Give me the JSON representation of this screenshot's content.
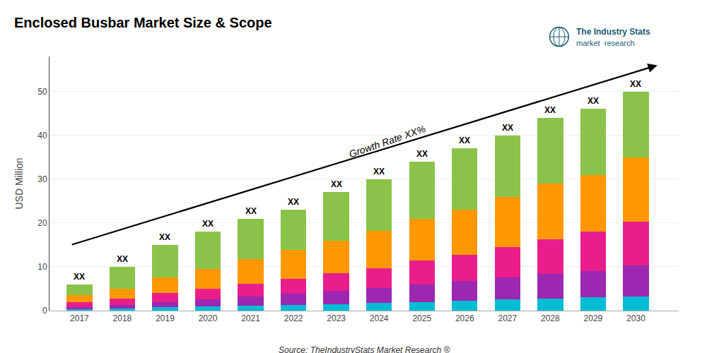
{
  "chart_data": {
    "type": "bar",
    "stacked": true,
    "title": "Enclosed Busbar Market Size & Scope",
    "ylabel": "USD Million",
    "x": [
      2017,
      2018,
      2019,
      2020,
      2021,
      2022,
      2023,
      2024,
      2025,
      2026,
      2027,
      2028,
      2029,
      2030
    ],
    "series": [
      {
        "color": "#00bcd4",
        "values": [
          0.3,
          0.5,
          0.8,
          1.0,
          1.2,
          1.3,
          1.5,
          1.7,
          2.0,
          2.2,
          2.5,
          2.8,
          3.0,
          3.3
        ]
      },
      {
        "color": "#9c27b0",
        "values": [
          0.5,
          0.8,
          1.2,
          1.5,
          2.0,
          2.5,
          3.0,
          3.5,
          4.0,
          4.5,
          5.0,
          5.5,
          6.0,
          7.0
        ]
      },
      {
        "color": "#e91e8c",
        "values": [
          1.2,
          1.5,
          2.0,
          2.5,
          3.0,
          3.5,
          4.0,
          4.5,
          5.5,
          6.0,
          7.0,
          8.0,
          9.0,
          10.0
        ]
      },
      {
        "color": "#ff9800",
        "values": [
          1.5,
          2.2,
          3.5,
          4.5,
          5.5,
          6.5,
          7.5,
          8.5,
          9.5,
          10.3,
          11.5,
          12.7,
          13.0,
          14.7
        ]
      },
      {
        "color": "#8bc34a",
        "values": [
          2.5,
          5.0,
          7.5,
          8.5,
          9.3,
          9.2,
          11.0,
          11.8,
          13.0,
          14.0,
          14.0,
          15.0,
          15.0,
          15.0
        ]
      }
    ],
    "xlim": [
      2016.3,
      2031.0
    ],
    "xticks": [
      2017,
      2018,
      2019,
      2020,
      2021,
      2022,
      2023,
      2024,
      2025,
      2026,
      2027,
      2028,
      2029,
      2030
    ],
    "ylim": [
      0,
      58
    ],
    "yticks": [
      0,
      10,
      20,
      30,
      40,
      50
    ],
    "grid": true,
    "annotations": [
      {
        "text": "XX",
        "x": 2017,
        "y": 6
      },
      {
        "text": "XX",
        "x": 2018,
        "y": 10
      },
      {
        "text": "XX",
        "x": 2019,
        "y": 15
      },
      {
        "text": "XX",
        "x": 2020,
        "y": 18
      },
      {
        "text": "XX",
        "x": 2021,
        "y": 21
      },
      {
        "text": "XX",
        "x": 2022,
        "y": 23
      },
      {
        "text": "XX",
        "x": 2023,
        "y": 27
      },
      {
        "text": "XX",
        "x": 2024,
        "y": 30
      },
      {
        "text": "XX",
        "x": 2025,
        "y": 34
      },
      {
        "text": "XX",
        "x": 2026,
        "y": 37
      },
      {
        "text": "XX",
        "x": 2027,
        "y": 40
      },
      {
        "text": "XX",
        "x": 2028,
        "y": 44
      },
      {
        "text": "XX",
        "x": 2029,
        "y": 46
      },
      {
        "text": "XX",
        "x": 2030,
        "y": 50
      },
      {
        "text": "Growth Rate XX%",
        "x": 2024.2,
        "y": 34.0
      }
    ],
    "arrow": {
      "x": [
        2016.8,
        2030.5
      ],
      "y": [
        15.0,
        56.0
      ]
    },
    "source": "Source: TheIndustryStats Market Research ®",
    "logo": {
      "lines": [
        "The Industry Stats",
        "market  research"
      ],
      "color": "#1a5c72"
    }
  }
}
